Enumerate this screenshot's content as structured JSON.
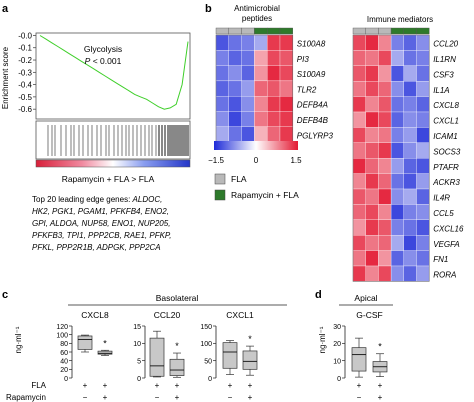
{
  "panel_a": {
    "letter": "a",
    "ylabel": "Enrichment score",
    "yticks": [
      "-0.0",
      "-0.1",
      "-0.2",
      "-0.3",
      "-0.4",
      "-0.5",
      "-0.6"
    ],
    "title": "Glycolysis",
    "pvalue": "P < 0.001",
    "xlabel": "Rapamycin + FLA > FLA",
    "leading_edge_header": "Top 20 leading edge genes:",
    "leading_edge_lines": [
      [
        "ALDOC,"
      ],
      [
        "HK2, PGK1, PGAM1, PFKFB4, ENO2,"
      ],
      [
        "GPI, ALDOA, NUP58, ENO1, NUP205,"
      ],
      [
        "PFKFB3, TPI1, PPP2CB, RAE1, PFKP,"
      ],
      [
        "PFKL, PPP2R1B, ADPGK, PPP2CA"
      ]
    ],
    "curve": [
      0,
      -0.03,
      -0.06,
      -0.09,
      -0.12,
      -0.15,
      -0.18,
      -0.21,
      -0.24,
      -0.27,
      -0.3,
      -0.33,
      -0.36,
      -0.39,
      -0.42,
      -0.45,
      -0.48,
      -0.5,
      -0.52,
      -0.55,
      -0.58,
      -0.6,
      -0.59,
      -0.56,
      -0.4,
      -0.05
    ],
    "ylim": [
      -0.68,
      0.02
    ]
  },
  "panel_b": {
    "letter": "b",
    "antimicrobial_title_1": "Antimicrobial",
    "antimicrobial_title_2": "peptides",
    "immune_title": "Immune mediators",
    "antimicrobial_genes": [
      "S100A8",
      "PI3",
      "S100A9",
      "TLR2",
      "DEFB4A",
      "DEFB4B",
      "PGLYRP3"
    ],
    "immune_genes": [
      "CCL20",
      "IL1RN",
      "CSF3",
      "IL1A",
      "CXCL8",
      "CXCL1",
      "ICAM1",
      "SOCS3",
      "PTAFR",
      "ACKR3",
      "IL4R",
      "CCL5",
      "CXCL16",
      "VEGFA",
      "FN1",
      "RORA"
    ],
    "antimicrobial_values": [
      [
        -1.2,
        -1.0,
        -0.9,
        -0.6,
        1.3,
        1.3
      ],
      [
        -0.9,
        -1.1,
        -1.0,
        0.6,
        1.2,
        1.1
      ],
      [
        -1.0,
        -0.8,
        -1.1,
        0.7,
        1.4,
        1.2
      ],
      [
        -1.1,
        -1.0,
        -0.7,
        1.0,
        1.1,
        0.9
      ],
      [
        -1.0,
        -1.2,
        -0.8,
        0.8,
        1.3,
        1.4
      ],
      [
        -0.8,
        -1.3,
        -0.9,
        0.9,
        1.2,
        1.3
      ],
      [
        -0.6,
        -1.0,
        -1.2,
        0.5,
        1.0,
        1.3
      ]
    ],
    "immune_values": [
      [
        1.2,
        1.4,
        0.8,
        -0.9,
        -1.1,
        -0.8
      ],
      [
        1.0,
        0.9,
        1.2,
        -0.6,
        -1.0,
        -0.9
      ],
      [
        1.1,
        1.3,
        0.7,
        -1.2,
        -0.6,
        -1.0
      ],
      [
        0.9,
        1.2,
        1.0,
        -0.8,
        -1.2,
        -0.7
      ],
      [
        1.3,
        0.8,
        1.1,
        -1.0,
        -0.9,
        -1.1
      ],
      [
        0.7,
        1.4,
        1.2,
        -1.1,
        -0.8,
        -0.9
      ],
      [
        1.2,
        0.8,
        0.9,
        -0.9,
        -0.7,
        -1.3
      ],
      [
        0.9,
        1.1,
        1.3,
        -1.2,
        -0.8,
        -0.6
      ],
      [
        1.4,
        1.0,
        0.8,
        -0.7,
        -1.1,
        -1.2
      ],
      [
        0.8,
        1.3,
        1.0,
        -1.0,
        -1.2,
        -0.7
      ],
      [
        1.1,
        0.9,
        1.4,
        -0.8,
        -0.6,
        -1.1
      ],
      [
        1.0,
        1.2,
        0.8,
        -1.3,
        -0.9,
        -0.8
      ],
      [
        0.7,
        1.3,
        1.1,
        -0.9,
        -1.0,
        -1.2
      ],
      [
        1.2,
        0.9,
        1.0,
        -0.6,
        -1.3,
        -0.9
      ],
      [
        0.9,
        1.4,
        0.7,
        -1.1,
        -0.8,
        -1.0
      ],
      [
        1.3,
        0.8,
        1.2,
        -0.8,
        -1.1,
        -0.7
      ]
    ],
    "colorbar_ticks": [
      "−1.5",
      "0",
      "1.5"
    ],
    "legend": [
      {
        "label": "FLA",
        "color": "#b9b9b9"
      },
      {
        "label": "Rapamycin + FLA",
        "color": "#2e7a2b"
      }
    ],
    "group_colors": [
      "#b9b9b9",
      "#b9b9b9",
      "#b9b9b9",
      "#2e7a2b",
      "#2e7a2b",
      "#2e7a2b"
    ]
  },
  "panel_c": {
    "letter": "c",
    "title": "Basolateral",
    "ylabel": "ng·ml⁻¹",
    "plots": [
      {
        "name": "CXCL8",
        "yticks": [
          "0",
          "20",
          "40",
          "60",
          "80",
          "100",
          "120"
        ],
        "ylim": [
          0,
          120
        ],
        "boxes": [
          {
            "min": 60,
            "q1": 66,
            "median": 89,
            "q3": 97,
            "max": 99
          },
          {
            "min": 52,
            "q1": 55,
            "median": 57,
            "q3": 62,
            "max": 64
          }
        ]
      },
      {
        "name": "CCL20",
        "yticks": [
          "0",
          "5",
          "10",
          "15"
        ],
        "ylim": [
          0,
          15
        ],
        "boxes": [
          {
            "min": 0.3,
            "q1": 0.5,
            "median": 3.5,
            "q3": 11.5,
            "max": 13.5
          },
          {
            "min": 0.2,
            "q1": 0.7,
            "median": 2.3,
            "q3": 5.4,
            "max": 7.2
          }
        ]
      },
      {
        "name": "CXCL1",
        "yticks": [
          "0",
          "50",
          "100",
          "150"
        ],
        "ylim": [
          0,
          150
        ],
        "boxes": [
          {
            "min": 10,
            "q1": 28,
            "median": 75,
            "q3": 102,
            "max": 108
          },
          {
            "min": 8,
            "q1": 25,
            "median": 48,
            "q3": 78,
            "max": 92
          }
        ]
      }
    ],
    "significance": "*",
    "row_labels": [
      "FLA",
      "Rapamycin"
    ],
    "row_values": [
      [
        "+",
        "+"
      ],
      [
        "−",
        "+"
      ]
    ]
  },
  "panel_d": {
    "letter": "d",
    "title": "Apical",
    "ylabel": "ng·ml⁻¹",
    "plot": {
      "name": "G-CSF",
      "yticks": [
        "0",
        "10",
        "20",
        "30"
      ],
      "ylim": [
        0,
        30
      ],
      "boxes": [
        {
          "min": 0.5,
          "q1": 4,
          "median": 13.5,
          "q3": 17.5,
          "max": 23
        },
        {
          "min": 0.8,
          "q1": 3.5,
          "median": 6.5,
          "q3": 9.5,
          "max": 14
        }
      ]
    },
    "significance": "*",
    "row_values": [
      [
        "+",
        "+"
      ],
      [
        "−",
        "+"
      ]
    ]
  }
}
